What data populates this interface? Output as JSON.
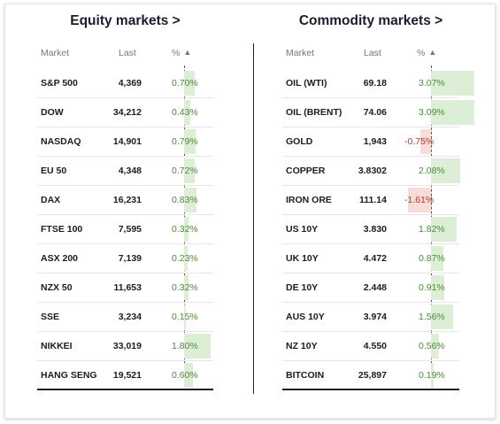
{
  "equity": {
    "title": "Equity markets >",
    "headers": {
      "market": "Market",
      "last": "Last",
      "pct": "%"
    },
    "sort_glyph": "▲",
    "rows": [
      {
        "market": "S&P 500",
        "last": "4,369",
        "pct": "0.70%",
        "value": 0.7
      },
      {
        "market": "DOW",
        "last": "34,212",
        "pct": "0.43%",
        "value": 0.43
      },
      {
        "market": "NASDAQ",
        "last": "14,901",
        "pct": "0.79%",
        "value": 0.79
      },
      {
        "market": "EU 50",
        "last": "4,348",
        "pct": "0.72%",
        "value": 0.72
      },
      {
        "market": "DAX",
        "last": "16,231",
        "pct": "0.83%",
        "value": 0.83
      },
      {
        "market": "FTSE 100",
        "last": "7,595",
        "pct": "0.32%",
        "value": 0.32
      },
      {
        "market": "ASX 200",
        "last": "7,139",
        "pct": "0.23%",
        "value": 0.23
      },
      {
        "market": "NZX 50",
        "last": "11,653",
        "pct": "0.32%",
        "value": 0.32
      },
      {
        "market": "SSE",
        "last": "3,234",
        "pct": "0.15%",
        "value": 0.15
      },
      {
        "market": "NIKKEI",
        "last": "33,019",
        "pct": "1.80%",
        "value": 1.8
      },
      {
        "market": "HANG SENG",
        "last": "19,521",
        "pct": "0.60%",
        "value": 0.6
      }
    ]
  },
  "commodity": {
    "title": "Commodity markets >",
    "headers": {
      "market": "Market",
      "last": "Last",
      "pct": "%"
    },
    "sort_glyph": "▲",
    "rows": [
      {
        "market": "OIL (WTI)",
        "last": "69.18",
        "pct": "3.07%",
        "value": 3.07
      },
      {
        "market": "OIL (BRENT)",
        "last": "74.06",
        "pct": "3.09%",
        "value": 3.09
      },
      {
        "market": "GOLD",
        "last": "1,943",
        "pct": "-0.75%",
        "value": -0.75
      },
      {
        "market": "COPPER",
        "last": "3.8302",
        "pct": "2.08%",
        "value": 2.08
      },
      {
        "market": "IRON ORE",
        "last": "111.14",
        "pct": "-1.61%",
        "value": -1.61
      },
      {
        "market": "US 10Y",
        "last": "3.830",
        "pct": "1.82%",
        "value": 1.82
      },
      {
        "market": "UK 10Y",
        "last": "4.472",
        "pct": "0.87%",
        "value": 0.87
      },
      {
        "market": "DE 10Y",
        "last": "2.448",
        "pct": "0.91%",
        "value": 0.91
      },
      {
        "market": "AUS 10Y",
        "last": "3.974",
        "pct": "1.56%",
        "value": 1.56
      },
      {
        "market": "NZ 10Y",
        "last": "4.550",
        "pct": "0.56%",
        "value": 0.56
      },
      {
        "market": "BITCOIN",
        "last": "25,897",
        "pct": "0.19%",
        "value": 0.19
      }
    ]
  },
  "colors": {
    "positive": "#4d8a3a",
    "negative": "#c0392b",
    "positive_bg": "#dcefd6",
    "negative_bg": "#f8dcd8"
  }
}
